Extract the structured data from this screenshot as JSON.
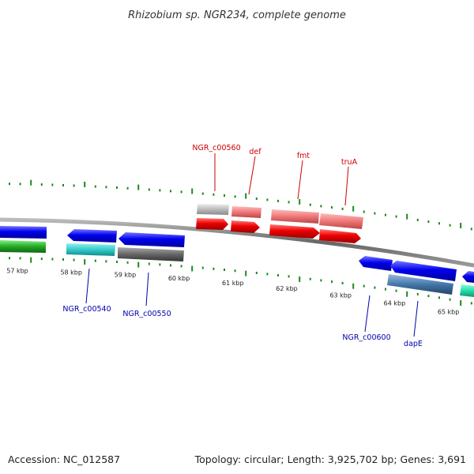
{
  "title": "Rhizobium sp. NGR234, complete genome",
  "footer": {
    "accession": "Accession: NC_012587",
    "summary": "Topology: circular; Length: 3,925,702 bp; Genes: 3,691"
  },
  "colors": {
    "label_forward": "#cc0000",
    "label_reverse": "#0000aa",
    "backbone": "#888888",
    "tick_forward": "#1a8a1a",
    "tick_reverse": "#1a8a1a"
  },
  "scale": {
    "unit": "kbp",
    "tick_labels": [
      {
        "kbp": 57,
        "text": "57 kbp"
      },
      {
        "kbp": 58,
        "text": "58 kbp"
      },
      {
        "kbp": 59,
        "text": "59 kbp"
      },
      {
        "kbp": 60,
        "text": "60 kbp"
      },
      {
        "kbp": 61,
        "text": "61 kbp"
      },
      {
        "kbp": 62,
        "text": "62 kbp"
      },
      {
        "kbp": 63,
        "text": "63 kbp"
      },
      {
        "kbp": 64,
        "text": "64 kbp"
      },
      {
        "kbp": 65,
        "text": "65 kbp"
      }
    ]
  },
  "gene_labels": [
    {
      "name": "NGR_c00560",
      "strand": "forward"
    },
    {
      "name": "def",
      "strand": "forward"
    },
    {
      "name": "fmt",
      "strand": "forward"
    },
    {
      "name": "truA",
      "strand": "forward"
    },
    {
      "name": "NGR_c00540",
      "strand": "reverse"
    },
    {
      "name": "NGR_c00550",
      "strand": "reverse"
    },
    {
      "name": "NGR_c00600",
      "strand": "reverse"
    },
    {
      "name": "dapE",
      "strand": "reverse"
    }
  ]
}
